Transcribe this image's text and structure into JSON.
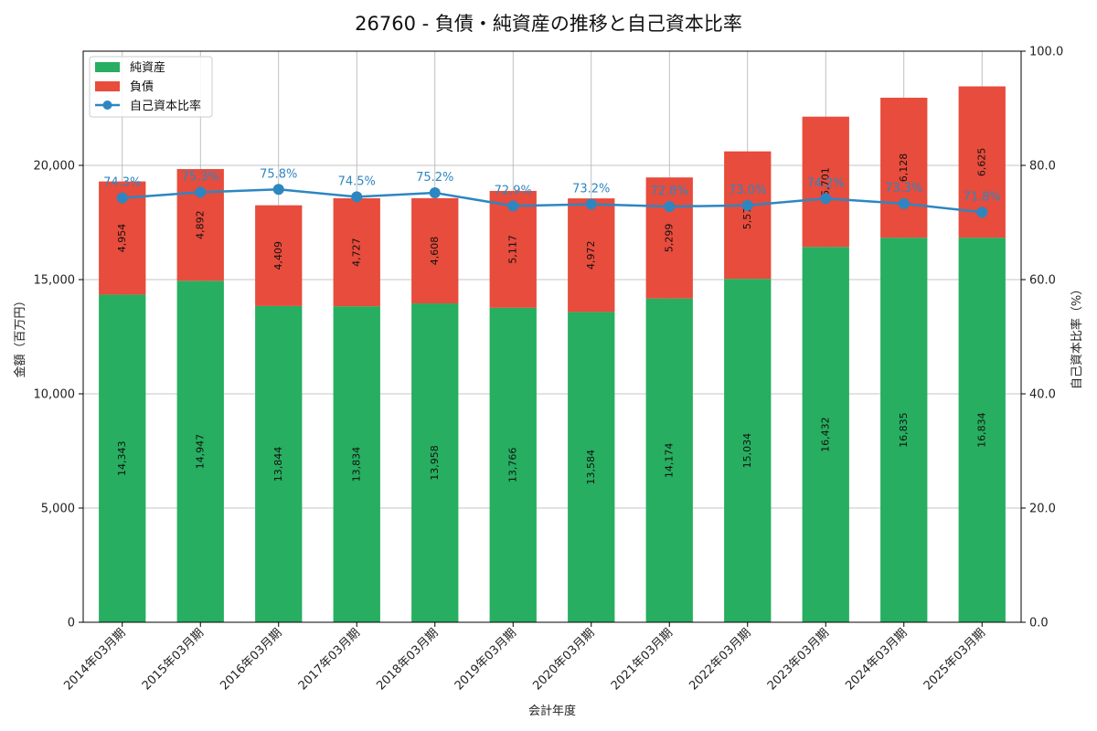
{
  "chart_data": {
    "type": "bar",
    "stacked": true,
    "title": "26760 - 負債・純資産の推移と自己資本比率",
    "xlabel": "会計年度",
    "ylabel": "金額（百万円）",
    "ylabel_right": "自己資本比率（%）",
    "ylim": [
      0,
      25000
    ],
    "ylim_right": [
      0,
      100
    ],
    "yticks": [
      0,
      5000,
      10000,
      15000,
      20000
    ],
    "yticks_right": [
      0,
      20,
      40,
      60,
      80,
      100
    ],
    "grid": true,
    "legend_position": "top-left",
    "categories": [
      "2014年03月期",
      "2015年03月期",
      "2016年03月期",
      "2017年03月期",
      "2018年03月期",
      "2019年03月期",
      "2020年03月期",
      "2021年03月期",
      "2022年03月期",
      "2023年03月期",
      "2024年03月期",
      "2025年03月期"
    ],
    "series": [
      {
        "name": "純資産",
        "kind": "bar",
        "color": "#27ae60",
        "values": [
          14343,
          14947,
          13844,
          13834,
          13958,
          13766,
          13584,
          14174,
          15034,
          16432,
          16835,
          16834
        ]
      },
      {
        "name": "負債",
        "kind": "bar",
        "color": "#e74c3c",
        "values": [
          4954,
          4892,
          4409,
          4727,
          4608,
          5117,
          4972,
          5299,
          5579,
          5701,
          6128,
          6625
        ]
      },
      {
        "name": "自己資本比率",
        "kind": "line",
        "axis": "right",
        "color": "#2e86c1",
        "values": [
          74.3,
          75.3,
          75.8,
          74.5,
          75.2,
          72.9,
          73.2,
          72.8,
          73.0,
          74.2,
          73.3,
          71.8
        ]
      }
    ]
  }
}
